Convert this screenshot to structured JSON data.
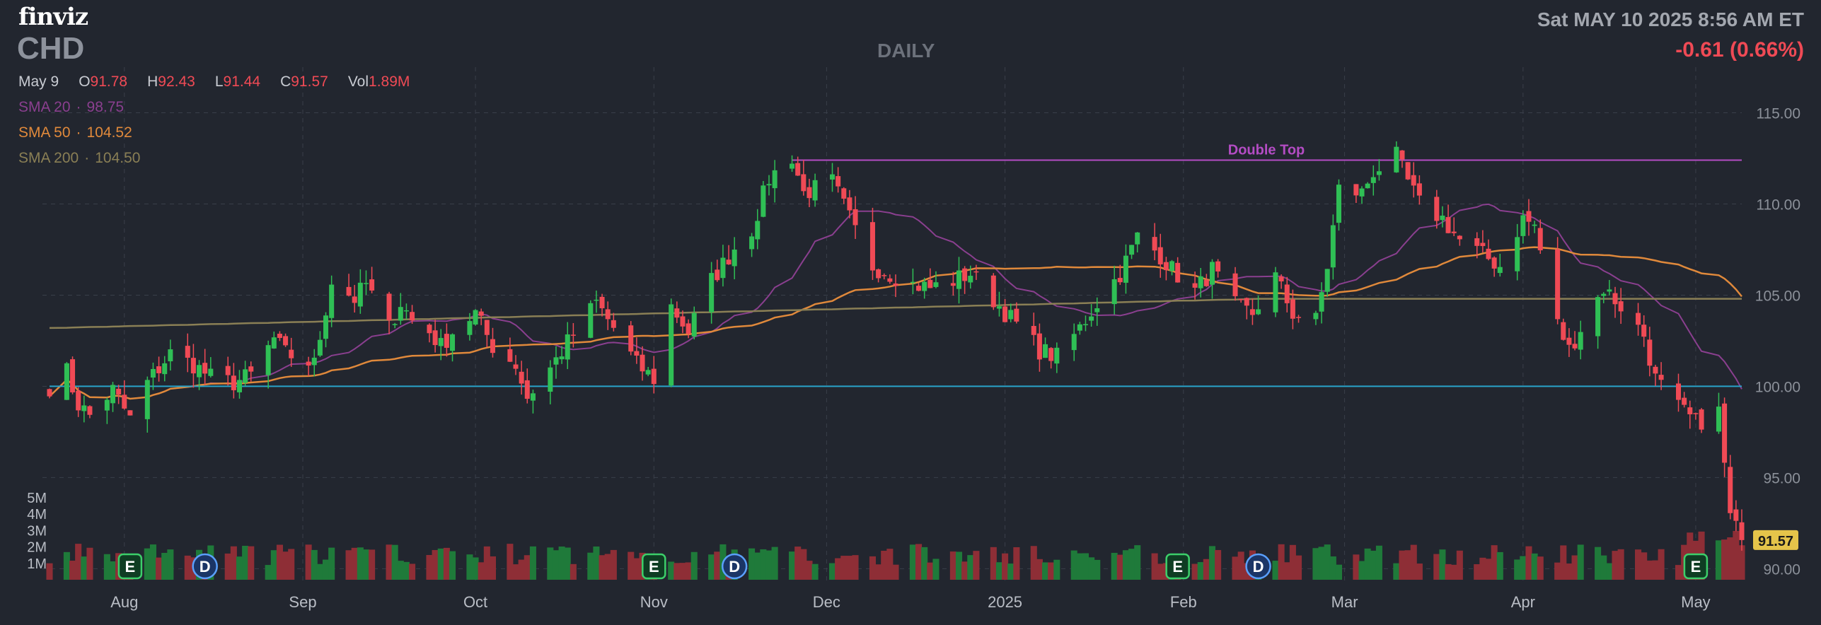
{
  "header": {
    "logo": "finviz",
    "ticker": "CHD",
    "period": "DAILY",
    "datetime": "Sat MAY 10 2025 8:56 AM ET",
    "change": "-0.61 (0.66%)"
  },
  "ohlc": {
    "date": "May 9",
    "o_label": "O",
    "o": "91.78",
    "h_label": "H",
    "h": "92.43",
    "l_label": "L",
    "l": "91.44",
    "c_label": "C",
    "c": "91.57",
    "vol_label": "Vol",
    "vol": "1.89M"
  },
  "indicators": {
    "sma20": {
      "label": "SMA 20",
      "value": "98.75",
      "color": "#8a3f8f"
    },
    "sma50": {
      "label": "SMA 50",
      "value": "104.52",
      "color": "#e0893b"
    },
    "sma200": {
      "label": "SMA 200",
      "value": "104.50",
      "color": "#8a7f55"
    }
  },
  "colors": {
    "background": "#22262f",
    "up": "#2fbf55",
    "down": "#f04a55",
    "volume_up": "#1f7a3a",
    "volume_down": "#8e2e36",
    "support_line": "#29a3c9",
    "double_top": "#b44cc4",
    "grid": "#3a3f4a"
  },
  "chart_data": {
    "type": "candlestick",
    "title": "CHD",
    "y_ticks": [
      "115.00",
      "110.00",
      "105.00",
      "100.00",
      "95.00",
      "90.00"
    ],
    "ylim": [
      89.2,
      117.5
    ],
    "x_ticks": [
      "Aug",
      "Sep",
      "Oct",
      "Nov",
      "Dec",
      "2025",
      "Feb",
      "Mar",
      "Apr",
      "May"
    ],
    "x_tick_dates": [
      "2024-08-01",
      "2024-09-01",
      "2024-10-01",
      "2024-11-01",
      "2024-12-01",
      "2025-01-01",
      "2025-02-01",
      "2025-03-01",
      "2025-04-01",
      "2025-05-01"
    ],
    "volume_ticks": [
      "5M",
      "4M",
      "3M",
      "2M",
      "1M"
    ],
    "last_price": "91.57",
    "support_level": 100.0,
    "double_top": {
      "label": "Double Top",
      "level": 112.4,
      "from": "2024-11-25",
      "to": "2025-05-09"
    },
    "anchor_points": [
      [
        "2024-07-19",
        100.0
      ],
      [
        "2024-07-22",
        100.8
      ],
      [
        "2024-07-24",
        99.0
      ],
      [
        "2024-07-26",
        98.4
      ],
      [
        "2024-07-30",
        99.8
      ],
      [
        "2024-08-02",
        98.2
      ],
      [
        "2024-08-05",
        100.2
      ],
      [
        "2024-08-09",
        101.8
      ],
      [
        "2024-08-13",
        101.2
      ],
      [
        "2024-08-16",
        100.5
      ],
      [
        "2024-08-20",
        100.2
      ],
      [
        "2024-08-23",
        100.6
      ],
      [
        "2024-08-27",
        102.6
      ],
      [
        "2024-08-29",
        101.8
      ],
      [
        "2024-09-03",
        101.2
      ],
      [
        "2024-09-06",
        105.8
      ],
      [
        "2024-09-10",
        104.8
      ],
      [
        "2024-09-12",
        105.6
      ],
      [
        "2024-09-16",
        103.2
      ],
      [
        "2024-09-18",
        104.6
      ],
      [
        "2024-09-20",
        103.6
      ],
      [
        "2024-09-23",
        103.0
      ],
      [
        "2024-09-25",
        102.2
      ],
      [
        "2024-09-27",
        103.0
      ],
      [
        "2024-10-01",
        104.0
      ],
      [
        "2024-10-04",
        102.2
      ],
      [
        "2024-10-08",
        101.2
      ],
      [
        "2024-10-10",
        99.4
      ],
      [
        "2024-10-14",
        101.0
      ],
      [
        "2024-10-17",
        102.4
      ],
      [
        "2024-10-22",
        104.6
      ],
      [
        "2024-10-25",
        103.2
      ],
      [
        "2024-10-29",
        101.2
      ],
      [
        "2024-11-01",
        100.4
      ],
      [
        "2024-11-04",
        104.4
      ],
      [
        "2024-11-07",
        103.0
      ],
      [
        "2024-11-11",
        105.8
      ],
      [
        "2024-11-15",
        107.6
      ],
      [
        "2024-11-18",
        108.6
      ],
      [
        "2024-11-21",
        111.4
      ],
      [
        "2024-11-25",
        112.6
      ],
      [
        "2024-11-27",
        110.6
      ],
      [
        "2024-12-02",
        111.2
      ],
      [
        "2024-12-05",
        109.2
      ],
      [
        "2024-12-09",
        106.6
      ],
      [
        "2024-12-12",
        106.2
      ],
      [
        "2024-12-16",
        105.6
      ],
      [
        "2024-12-19",
        105.4
      ],
      [
        "2024-12-23",
        105.8
      ],
      [
        "2024-12-26",
        106.2
      ],
      [
        "2024-12-31",
        104.4
      ],
      [
        "2025-01-03",
        103.4
      ],
      [
        "2025-01-07",
        102.0
      ],
      [
        "2025-01-10",
        101.6
      ],
      [
        "2025-01-14",
        103.2
      ],
      [
        "2025-01-17",
        104.6
      ],
      [
        "2025-01-21",
        106.2
      ],
      [
        "2025-01-24",
        108.2
      ],
      [
        "2025-01-28",
        107.2
      ],
      [
        "2025-01-30",
        106.4
      ],
      [
        "2025-02-03",
        105.2
      ],
      [
        "2025-02-06",
        106.4
      ],
      [
        "2025-02-10",
        104.4
      ],
      [
        "2025-02-13",
        104.0
      ],
      [
        "2025-02-17",
        106.0
      ],
      [
        "2025-02-20",
        104.0
      ],
      [
        "2025-02-24",
        103.6
      ],
      [
        "2025-02-26",
        106.6
      ],
      [
        "2025-02-28",
        110.8
      ],
      [
        "2025-03-04",
        110.6
      ],
      [
        "2025-03-06",
        111.8
      ],
      [
        "2025-03-10",
        112.6
      ],
      [
        "2025-03-12",
        111.2
      ],
      [
        "2025-03-14",
        110.0
      ],
      [
        "2025-03-18",
        109.2
      ],
      [
        "2025-03-21",
        108.0
      ],
      [
        "2025-03-25",
        107.2
      ],
      [
        "2025-03-28",
        106.6
      ],
      [
        "2025-04-01",
        109.2
      ],
      [
        "2025-04-03",
        108.8
      ],
      [
        "2025-04-07",
        103.4
      ],
      [
        "2025-04-09",
        102.0
      ],
      [
        "2025-04-11",
        103.2
      ],
      [
        "2025-04-15",
        105.4
      ],
      [
        "2025-04-18",
        104.4
      ],
      [
        "2025-04-22",
        102.8
      ],
      [
        "2025-04-24",
        100.4
      ],
      [
        "2025-04-28",
        98.8
      ],
      [
        "2025-05-01",
        98.0
      ],
      [
        "2025-05-05",
        98.6
      ],
      [
        "2025-05-07",
        92.8
      ],
      [
        "2025-05-09",
        91.57
      ]
    ],
    "events": [
      {
        "label": "E",
        "date": "2024-08-02"
      },
      {
        "label": "D",
        "date": "2024-08-15"
      },
      {
        "label": "E",
        "date": "2024-11-01"
      },
      {
        "label": "D",
        "date": "2024-11-15"
      },
      {
        "label": "E",
        "date": "2025-01-31"
      },
      {
        "label": "D",
        "date": "2025-02-14"
      },
      {
        "label": "E",
        "date": "2025-05-01"
      }
    ]
  }
}
